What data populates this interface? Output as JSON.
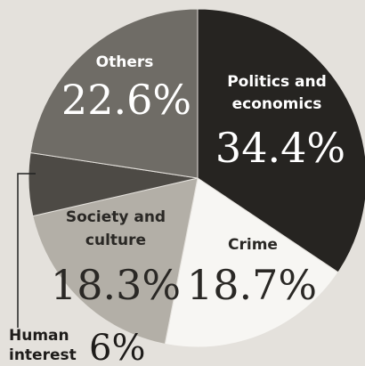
{
  "chart_data": {
    "type": "pie",
    "slices": [
      {
        "label": "Politics and economics",
        "display": "34.4%",
        "value": 34.4,
        "color": "#262421"
      },
      {
        "label": "Crime",
        "display": "18.7%",
        "value": 18.7,
        "color": "#f7f6f3"
      },
      {
        "label": "Society and culture",
        "display": "18.3%",
        "value": 18.3,
        "color": "#b3afa7"
      },
      {
        "label": "Human interest",
        "display": "6%",
        "value": 6,
        "color": "#4d4a45"
      },
      {
        "label": "Others",
        "display": "22.6%",
        "value": 22.6,
        "color": "#6f6c66"
      }
    ],
    "labels": {
      "others_1": "Others",
      "politics_1": "Politics and",
      "politics_2": "economics",
      "society_1": "Society and",
      "society_2": "culture",
      "crime_1": "Crime",
      "human_1": "Human",
      "human_2": "interest"
    },
    "legend": "none",
    "grid": false
  }
}
